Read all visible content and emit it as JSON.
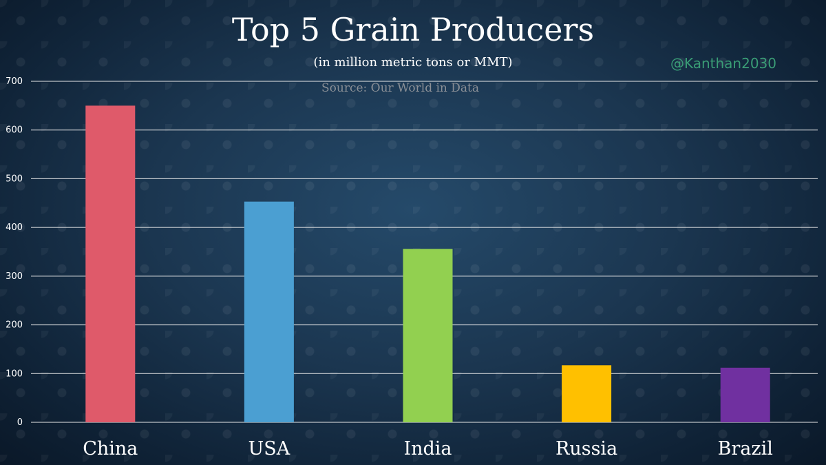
{
  "chart_data": {
    "type": "bar",
    "title": "Top 5 Grain Producers",
    "subtitle": "(in million metric tons or MMT)",
    "source": "Source: Our World in Data",
    "handle": "@Kanthan2030",
    "categories": [
      "China",
      "USA",
      "India",
      "Russia",
      "Brazil"
    ],
    "values": [
      650,
      453,
      356,
      117,
      112
    ],
    "colors": [
      "#df5a6a",
      "#4b9fd2",
      "#92d050",
      "#ffc000",
      "#7030a0"
    ],
    "ylim": [
      0,
      700
    ],
    "yticks": [
      0,
      100,
      200,
      300,
      400,
      500,
      600,
      700
    ],
    "grid": true,
    "legend": "none",
    "xlabel": "",
    "ylabel": ""
  }
}
